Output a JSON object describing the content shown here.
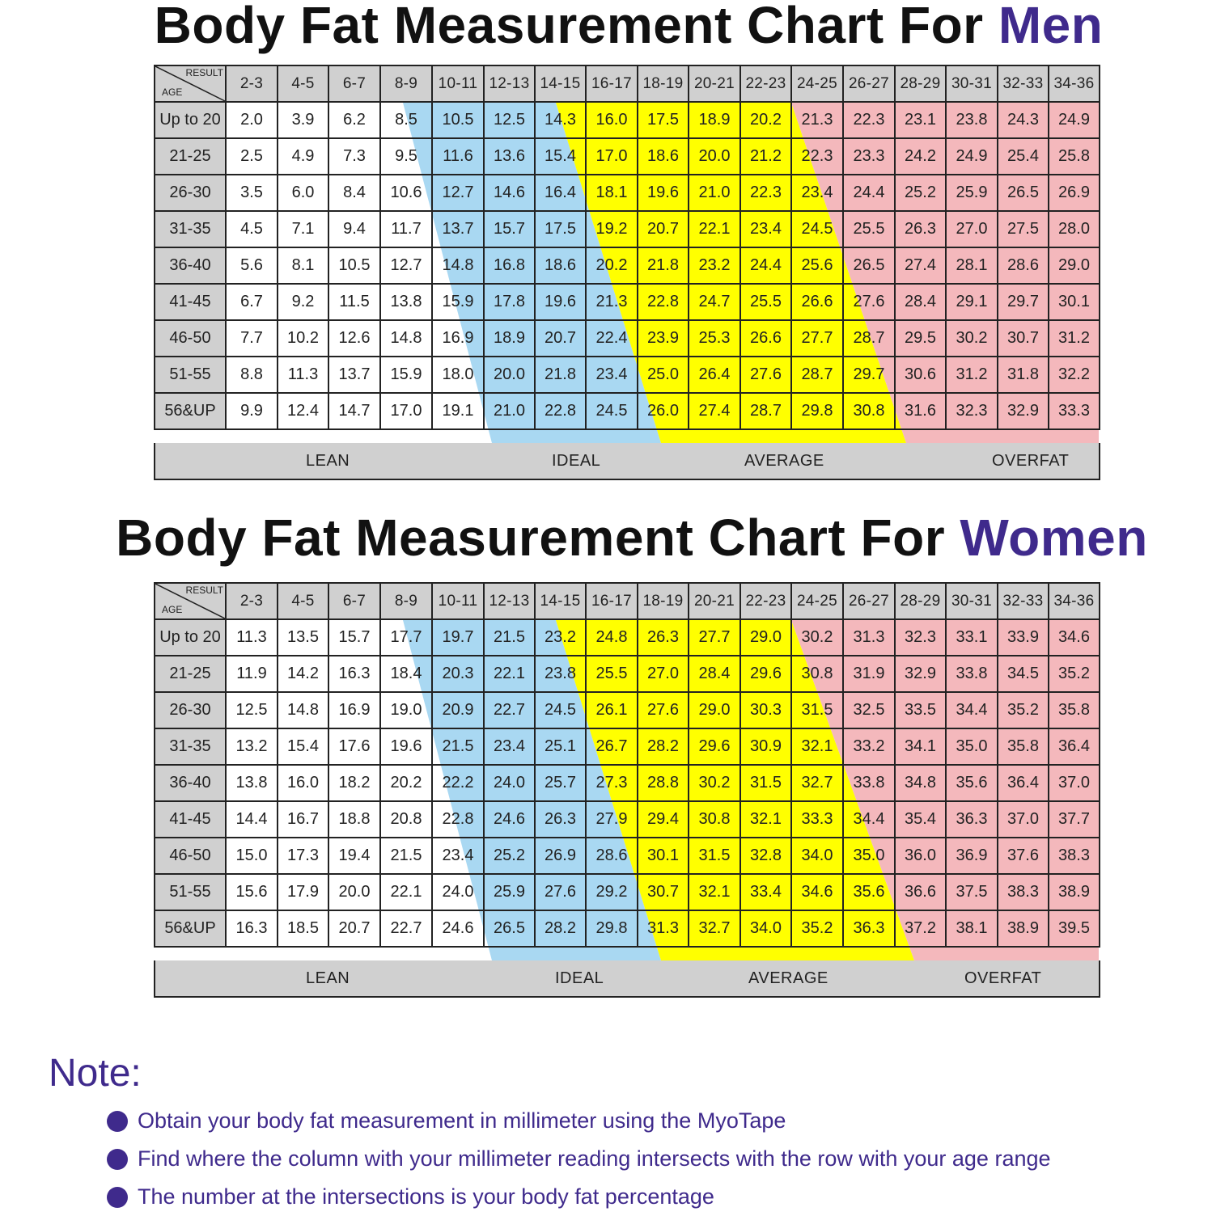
{
  "colors": {
    "accent": "#3f2a8c",
    "lean": "#ffffff",
    "ideal": "#a9d8f2",
    "average": "#ffff00",
    "overfat": "#f4b8bc",
    "header": "#d0d0d0"
  },
  "men": {
    "title_prefix": "Body Fat Measurement Chart For ",
    "title_accent": "Men"
  },
  "women": {
    "title_prefix": "Body Fat Measurement Chart For ",
    "title_accent": "Women"
  },
  "corner": {
    "result": "RESULT",
    "age": "AGE"
  },
  "legend": {
    "lean": "LEAN",
    "ideal": "IDEAL",
    "average": "AVERAGE",
    "overfat": "OVERFAT"
  },
  "note": {
    "title": "Note:",
    "items": [
      "Obtain your body fat measurement in millimeter using the MyoTape",
      "Find where the column with your millimeter reading intersects with the row with your age range",
      "The number at the intersections is your body fat percentage"
    ]
  },
  "chart_data": [
    {
      "type": "table",
      "title": "Body Fat Measurement Chart For Men",
      "xlabel": "RESULT (mm)",
      "ylabel": "AGE",
      "categories": [
        "2-3",
        "4-5",
        "6-7",
        "8-9",
        "10-11",
        "12-13",
        "14-15",
        "16-17",
        "18-19",
        "20-21",
        "22-23",
        "24-25",
        "26-27",
        "28-29",
        "30-31",
        "32-33",
        "34-36"
      ],
      "rows": [
        "Up to 20",
        "21-25",
        "26-30",
        "31-35",
        "36-40",
        "41-45",
        "46-50",
        "51-55",
        "56&UP"
      ],
      "values": [
        [
          "2.0",
          "3.9",
          "6.2",
          "8.5",
          "10.5",
          "12.5",
          "14.3",
          "16.0",
          "17.5",
          "18.9",
          "20.2",
          "21.3",
          "22.3",
          "23.1",
          "23.8",
          "24.3",
          "24.9"
        ],
        [
          "2.5",
          "4.9",
          "7.3",
          "9.5",
          "11.6",
          "13.6",
          "15.4",
          "17.0",
          "18.6",
          "20.0",
          "21.2",
          "22.3",
          "23.3",
          "24.2",
          "24.9",
          "25.4",
          "25.8"
        ],
        [
          "3.5",
          "6.0",
          "8.4",
          "10.6",
          "12.7",
          "14.6",
          "16.4",
          "18.1",
          "19.6",
          "21.0",
          "22.3",
          "23.4",
          "24.4",
          "25.2",
          "25.9",
          "26.5",
          "26.9"
        ],
        [
          "4.5",
          "7.1",
          "9.4",
          "11.7",
          "13.7",
          "15.7",
          "17.5",
          "19.2",
          "20.7",
          "22.1",
          "23.4",
          "24.5",
          "25.5",
          "26.3",
          "27.0",
          "27.5",
          "28.0"
        ],
        [
          "5.6",
          "8.1",
          "10.5",
          "12.7",
          "14.8",
          "16.8",
          "18.6",
          "20.2",
          "21.8",
          "23.2",
          "24.4",
          "25.6",
          "26.5",
          "27.4",
          "28.1",
          "28.6",
          "29.0"
        ],
        [
          "6.7",
          "9.2",
          "11.5",
          "13.8",
          "15.9",
          "17.8",
          "19.6",
          "21.3",
          "22.8",
          "24.7",
          "25.5",
          "26.6",
          "27.6",
          "28.4",
          "29.1",
          "29.7",
          "30.1"
        ],
        [
          "7.7",
          "10.2",
          "12.6",
          "14.8",
          "16.9",
          "18.9",
          "20.7",
          "22.4",
          "23.9",
          "25.3",
          "26.6",
          "27.7",
          "28.7",
          "29.5",
          "30.2",
          "30.7",
          "31.2"
        ],
        [
          "8.8",
          "11.3",
          "13.7",
          "15.9",
          "18.0",
          "20.0",
          "21.8",
          "23.4",
          "25.0",
          "26.4",
          "27.6",
          "28.7",
          "29.7",
          "30.6",
          "31.2",
          "31.8",
          "32.2"
        ],
        [
          "9.9",
          "12.4",
          "14.7",
          "17.0",
          "19.1",
          "21.0",
          "22.8",
          "24.5",
          "26.0",
          "27.4",
          "28.7",
          "29.8",
          "30.8",
          "31.6",
          "32.3",
          "32.9",
          "33.3"
        ]
      ],
      "zones": [
        "LEAN",
        "IDEAL",
        "AVERAGE",
        "OVERFAT"
      ]
    },
    {
      "type": "table",
      "title": "Body Fat Measurement Chart For Women",
      "xlabel": "RESULT (mm)",
      "ylabel": "AGE",
      "categories": [
        "2-3",
        "4-5",
        "6-7",
        "8-9",
        "10-11",
        "12-13",
        "14-15",
        "16-17",
        "18-19",
        "20-21",
        "22-23",
        "24-25",
        "26-27",
        "28-29",
        "30-31",
        "32-33",
        "34-36"
      ],
      "rows": [
        "Up to 20",
        "21-25",
        "26-30",
        "31-35",
        "36-40",
        "41-45",
        "46-50",
        "51-55",
        "56&UP"
      ],
      "values": [
        [
          "11.3",
          "13.5",
          "15.7",
          "17.7",
          "19.7",
          "21.5",
          "23.2",
          "24.8",
          "26.3",
          "27.7",
          "29.0",
          "30.2",
          "31.3",
          "32.3",
          "33.1",
          "33.9",
          "34.6"
        ],
        [
          "11.9",
          "14.2",
          "16.3",
          "18.4",
          "20.3",
          "22.1",
          "23.8",
          "25.5",
          "27.0",
          "28.4",
          "29.6",
          "30.8",
          "31.9",
          "32.9",
          "33.8",
          "34.5",
          "35.2"
        ],
        [
          "12.5",
          "14.8",
          "16.9",
          "19.0",
          "20.9",
          "22.7",
          "24.5",
          "26.1",
          "27.6",
          "29.0",
          "30.3",
          "31.5",
          "32.5",
          "33.5",
          "34.4",
          "35.2",
          "35.8"
        ],
        [
          "13.2",
          "15.4",
          "17.6",
          "19.6",
          "21.5",
          "23.4",
          "25.1",
          "26.7",
          "28.2",
          "29.6",
          "30.9",
          "32.1",
          "33.2",
          "34.1",
          "35.0",
          "35.8",
          "36.4"
        ],
        [
          "13.8",
          "16.0",
          "18.2",
          "20.2",
          "22.2",
          "24.0",
          "25.7",
          "27.3",
          "28.8",
          "30.2",
          "31.5",
          "32.7",
          "33.8",
          "34.8",
          "35.6",
          "36.4",
          "37.0"
        ],
        [
          "14.4",
          "16.7",
          "18.8",
          "20.8",
          "22.8",
          "24.6",
          "26.3",
          "27.9",
          "29.4",
          "30.8",
          "32.1",
          "33.3",
          "34.4",
          "35.4",
          "36.3",
          "37.0",
          "37.7"
        ],
        [
          "15.0",
          "17.3",
          "19.4",
          "21.5",
          "23.4",
          "25.2",
          "26.9",
          "28.6",
          "30.1",
          "31.5",
          "32.8",
          "34.0",
          "35.0",
          "36.0",
          "36.9",
          "37.6",
          "38.3"
        ],
        [
          "15.6",
          "17.9",
          "20.0",
          "22.1",
          "24.0",
          "25.9",
          "27.6",
          "29.2",
          "30.7",
          "32.1",
          "33.4",
          "34.6",
          "35.6",
          "36.6",
          "37.5",
          "38.3",
          "38.9"
        ],
        [
          "16.3",
          "18.5",
          "20.7",
          "22.7",
          "24.6",
          "26.5",
          "28.2",
          "29.8",
          "31.3",
          "32.7",
          "34.0",
          "35.2",
          "36.3",
          "37.2",
          "38.1",
          "38.9",
          "39.5"
        ]
      ],
      "zones": [
        "LEAN",
        "IDEAL",
        "AVERAGE",
        "OVERFAT"
      ]
    }
  ]
}
